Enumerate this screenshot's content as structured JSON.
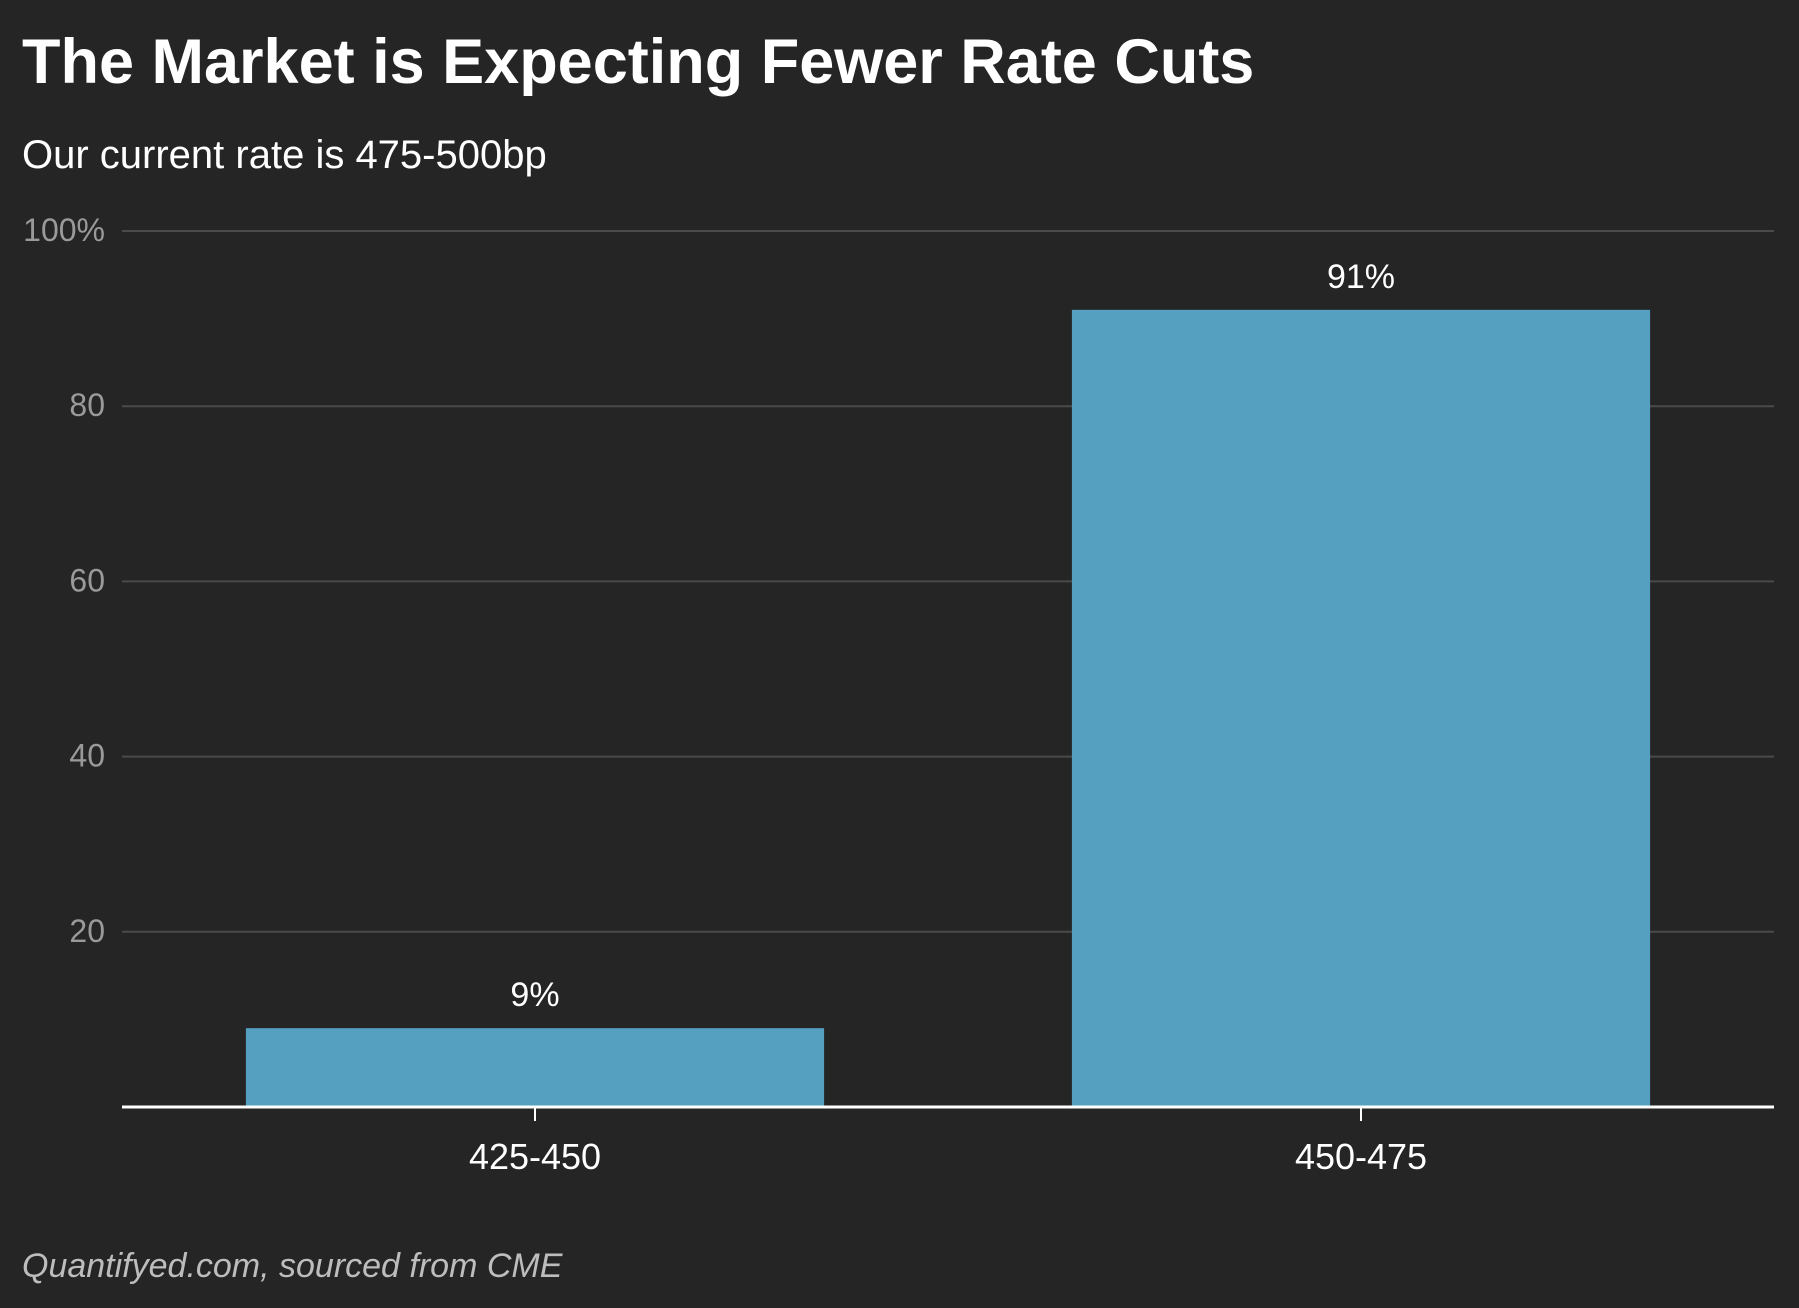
{
  "header": {
    "title": "The Market is Expecting Fewer Rate Cuts",
    "subtitle": "Our current rate is 475-500bp"
  },
  "footer": {
    "source": "Quantifyed.com, sourced from CME"
  },
  "colors": {
    "background": "#252525",
    "bar": "#55a0c1",
    "grid": "#4a4a4a",
    "axis": "#ffffff",
    "tick_label": "#9a9a9a",
    "category_label": "#ffffff"
  },
  "chart_data": {
    "type": "bar",
    "categories": [
      "425-450",
      "450-475"
    ],
    "values": [
      9,
      91
    ],
    "data_labels": [
      "9%",
      "91%"
    ],
    "ylim": [
      0,
      100
    ],
    "y_ticks": [
      20,
      40,
      60,
      80,
      100
    ],
    "y_tick_labels": [
      "20",
      "40",
      "60",
      "80",
      "100%"
    ],
    "grid": true,
    "xlabel": "",
    "ylabel": ""
  }
}
